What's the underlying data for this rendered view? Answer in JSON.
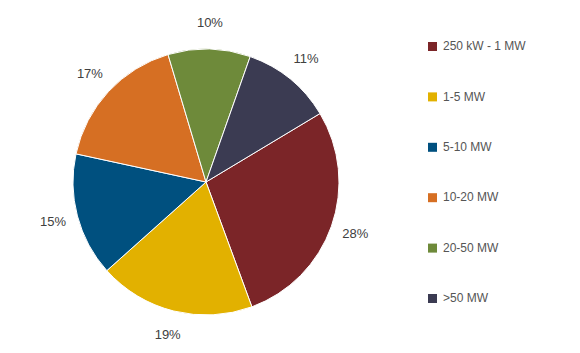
{
  "chart_data": {
    "type": "pie",
    "categories": [
      "250 kW - 1 MW",
      "1-5 MW",
      "5-10 MW",
      "10-20 MW",
      "20-50 MW",
      ">50 MW"
    ],
    "values": [
      28,
      19,
      15,
      17,
      10,
      11
    ],
    "value_labels": [
      "28%",
      "19%",
      "15%",
      "17%",
      "10%",
      "11%"
    ],
    "colors": [
      "#7b2528",
      "#e2b100",
      "#00507f",
      "#d66f23",
      "#6e8a3a",
      "#3b3b52"
    ],
    "data_labels": true,
    "legend": "right"
  }
}
